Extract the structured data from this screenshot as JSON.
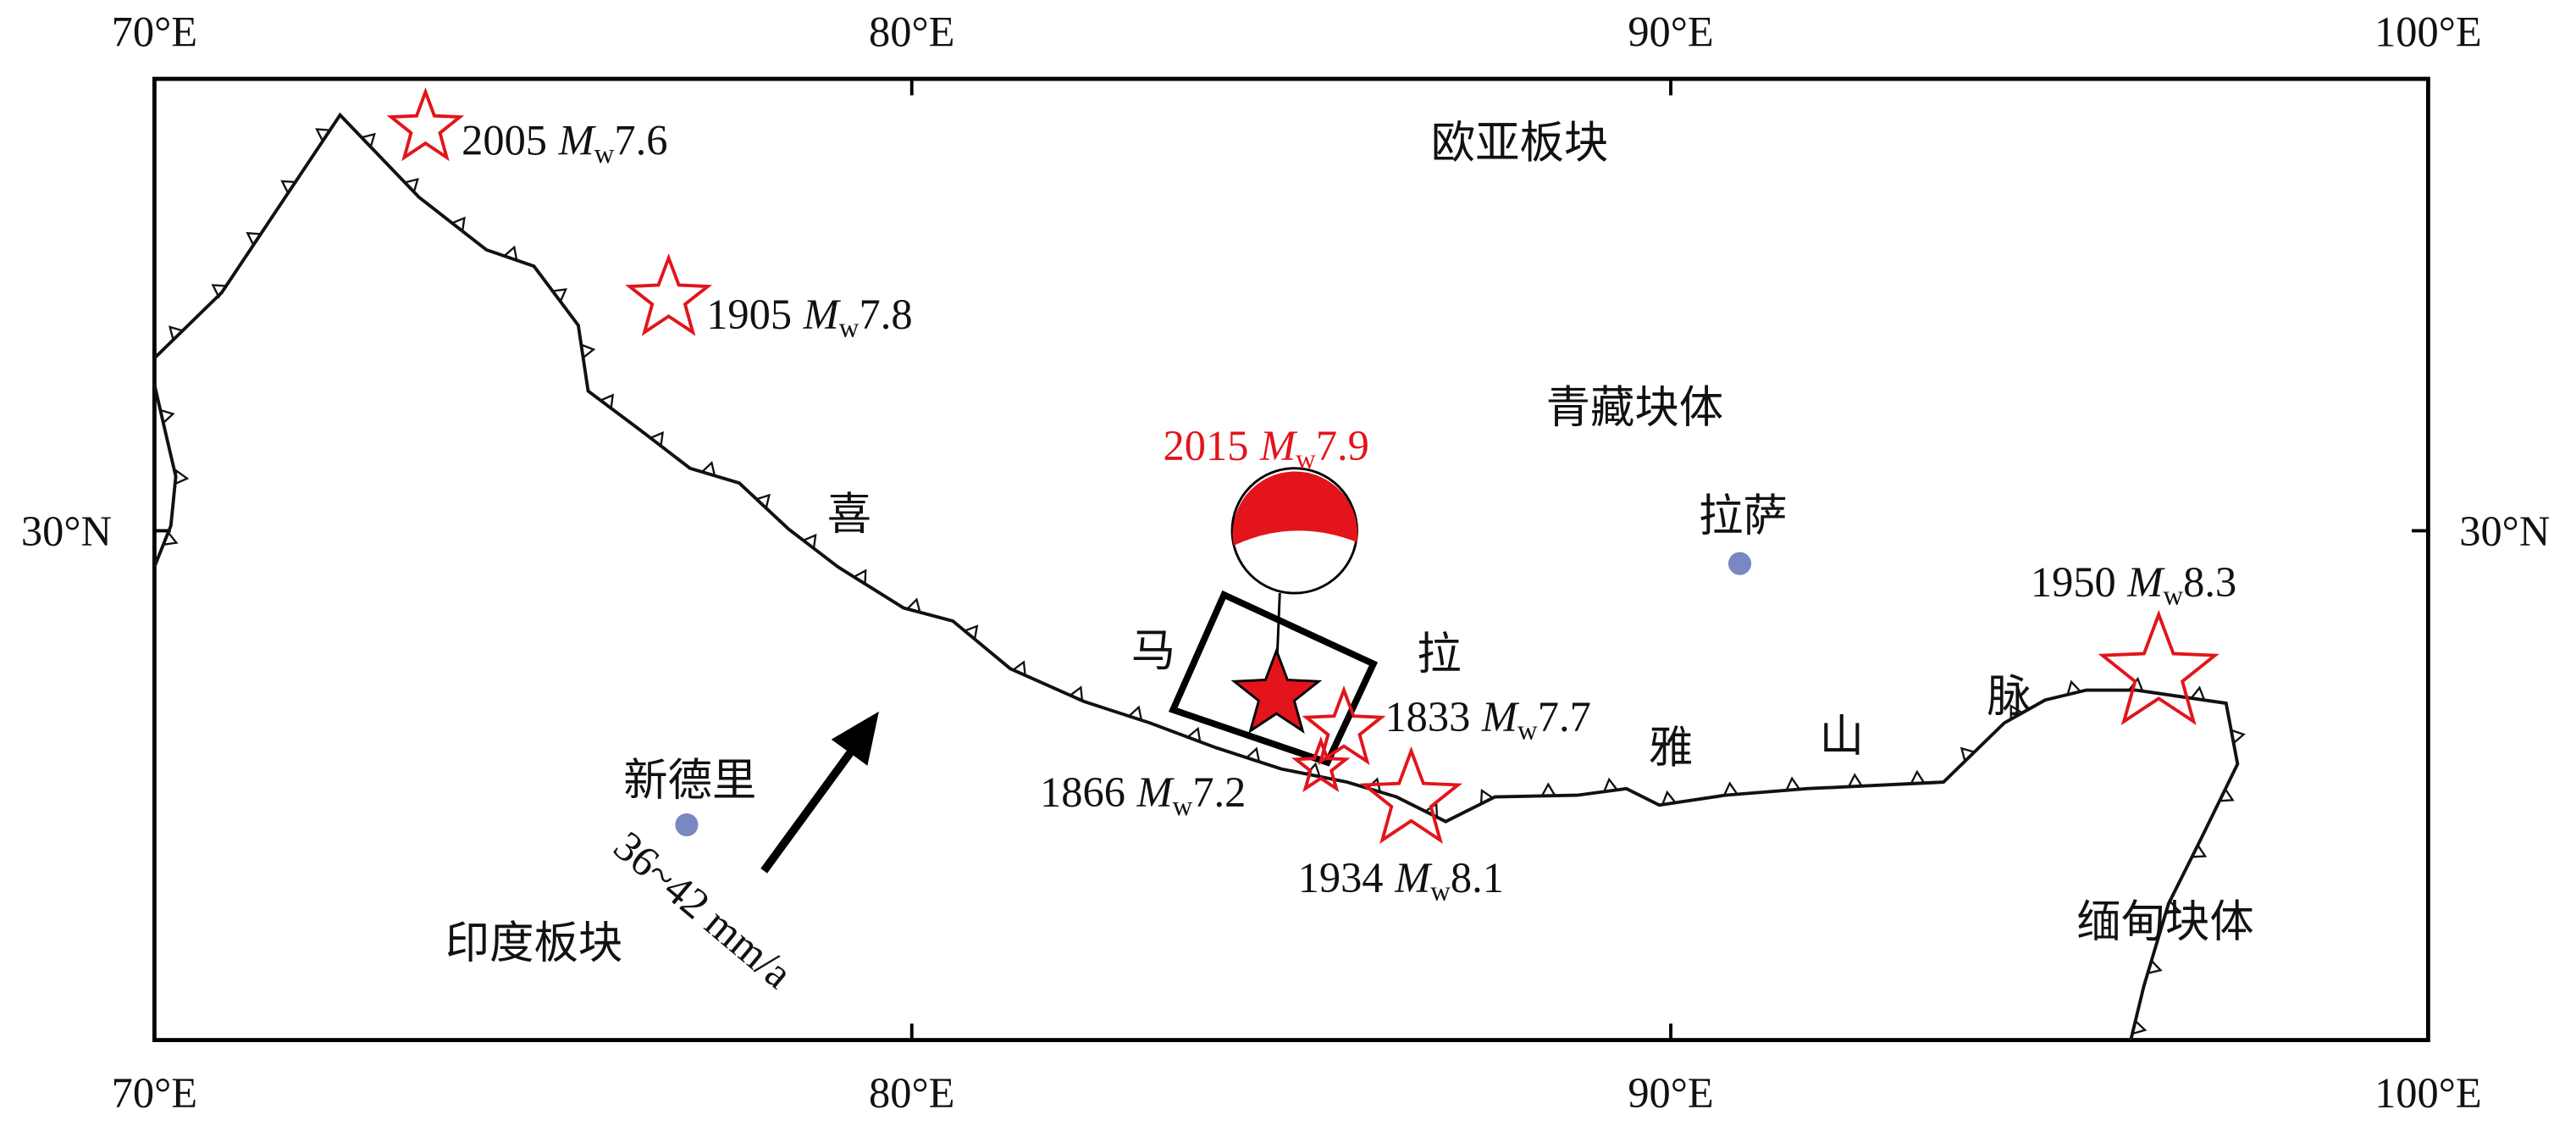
{
  "map": {
    "longitude_labels": [
      "70°E",
      "80°E",
      "90°E",
      "100°E"
    ],
    "latitude_labels": [
      "30°N"
    ],
    "magnitude_symbol": "M",
    "magnitude_subscript": "w",
    "earthquakes": [
      {
        "year": "2005",
        "magnitude": "7.6"
      },
      {
        "year": "1905",
        "magnitude": "7.8"
      },
      {
        "year": "2015",
        "magnitude": "7.9"
      },
      {
        "year": "1833",
        "magnitude": "7.7"
      },
      {
        "year": "1866",
        "magnitude": "7.2"
      },
      {
        "year": "1934",
        "magnitude": "8.1"
      },
      {
        "year": "1950",
        "magnitude": "8.3"
      }
    ],
    "regions": [
      "欧亚板块",
      "青藏块体",
      "印度板块",
      "缅甸块体"
    ],
    "mountain_range": [
      "喜",
      "马",
      "拉",
      "雅",
      "山",
      "脉"
    ],
    "cities": [
      "新德里",
      "拉萨"
    ],
    "plate_motion": "36~42 mm/a"
  }
}
